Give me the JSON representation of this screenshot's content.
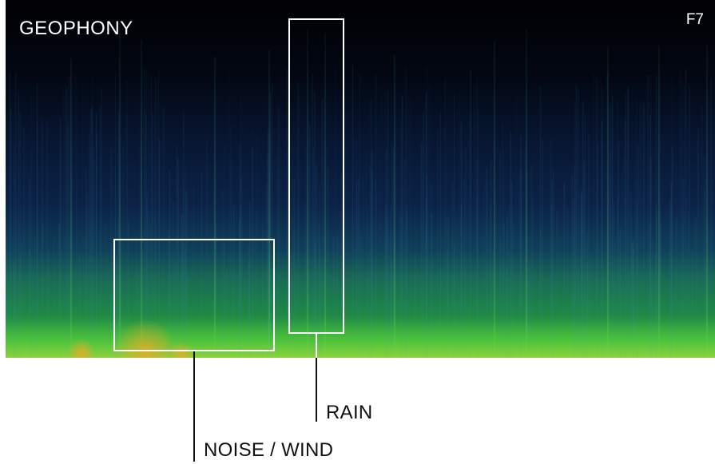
{
  "panel": {
    "title": "GEOPHONY",
    "figure_label": "F7"
  },
  "annotations": [
    {
      "id": "noise",
      "label": "NOISE / WIND"
    },
    {
      "id": "rain",
      "label": "RAIN"
    }
  ],
  "colors": {
    "box_stroke": "#ffffff",
    "leader_line": "#111111",
    "label_text": "#111111",
    "spectrogram_top": "#000000",
    "spectrogram_mid": "#0b1f45",
    "spectrogram_low": "#1f9a3a",
    "spectrogram_hot": "#e0a020"
  }
}
